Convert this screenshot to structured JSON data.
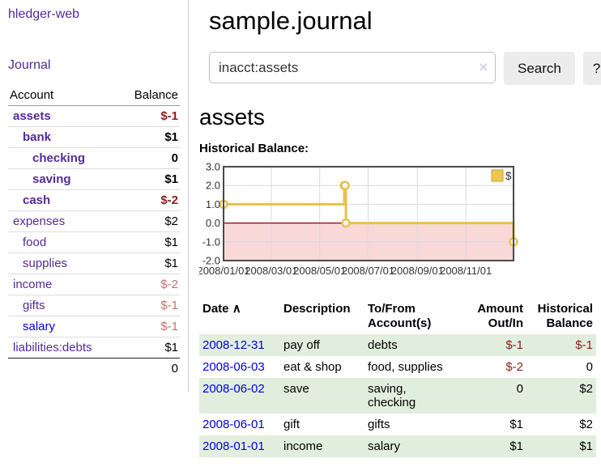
{
  "app": {
    "brand": "hledger-web"
  },
  "sidebar": {
    "journal_link": "Journal",
    "accounts": {
      "col_account": "Account",
      "col_balance": "Balance",
      "rows": [
        {
          "name": "assets",
          "balance": "$-1",
          "depth": 1,
          "bold": true,
          "neg": "strong",
          "blue": false
        },
        {
          "name": "bank",
          "balance": "$1",
          "depth": 2,
          "bold": true,
          "neg": null,
          "blue": false
        },
        {
          "name": "checking",
          "balance": "0",
          "depth": 3,
          "bold": true,
          "neg": null,
          "blue": false
        },
        {
          "name": "saving",
          "balance": "$1",
          "depth": 3,
          "bold": true,
          "neg": null,
          "blue": false
        },
        {
          "name": "cash",
          "balance": "$-2",
          "depth": 2,
          "bold": true,
          "neg": "strong",
          "blue": false
        },
        {
          "name": "expenses",
          "balance": "$2",
          "depth": 1,
          "bold": false,
          "neg": null,
          "blue": false
        },
        {
          "name": "food",
          "balance": "$1",
          "depth": 2,
          "bold": false,
          "neg": null,
          "blue": false
        },
        {
          "name": "supplies",
          "balance": "$1",
          "depth": 2,
          "bold": false,
          "neg": null,
          "blue": false
        },
        {
          "name": "income",
          "balance": "$-2",
          "depth": 1,
          "bold": false,
          "neg": "soft",
          "blue": false
        },
        {
          "name": "gifts",
          "balance": "$-1",
          "depth": 2,
          "bold": false,
          "neg": "soft",
          "blue": false
        },
        {
          "name": "salary",
          "balance": "$-1",
          "depth": 2,
          "bold": false,
          "neg": "soft",
          "blue": true
        },
        {
          "name": "liabilities:debts",
          "balance": "$1",
          "depth": 1,
          "bold": false,
          "neg": null,
          "blue": false
        }
      ],
      "total": "0"
    }
  },
  "main": {
    "title": "sample.journal",
    "search": {
      "value": "inacct:assets",
      "clear": "×",
      "search_button": "Search",
      "help_button": "?"
    },
    "heading": "assets",
    "chart_title": "Historical Balance:"
  },
  "chart_data": {
    "type": "line",
    "step": true,
    "title": "Historical Balance",
    "series": [
      {
        "name": "$",
        "color": "#e8c04e",
        "points": [
          {
            "date": "2008-01-01",
            "value": 1
          },
          {
            "date": "2008-06-01",
            "value": 2
          },
          {
            "date": "2008-06-02",
            "value": 2
          },
          {
            "date": "2008-06-03",
            "value": 0
          },
          {
            "date": "2008-12-31",
            "value": -1
          }
        ]
      }
    ],
    "point_days": [
      0,
      152,
      153,
      154,
      365
    ],
    "x_range_days": [
      0,
      365
    ],
    "tick_days": [
      0,
      60,
      121,
      182,
      244,
      305
    ],
    "x_ticks": [
      "2008/01/01",
      "2008/03/01",
      "2008/05/01",
      "2008/07/01",
      "2008/09/01",
      "2008/11/01"
    ],
    "y_ticks": [
      "3.0",
      "2.0",
      "1.0",
      "0.0",
      "-1.0",
      "-2.0"
    ],
    "ylim": [
      -2,
      3
    ],
    "grid": true,
    "legend": {
      "label": "$",
      "position": "top-right",
      "swatch_fill": "#ecc64f",
      "swatch_border": "#c9a227"
    },
    "negative_fill": "#f9d8d8",
    "zero_line_color": "#8b0000",
    "grid_color": "#d9d9d9",
    "border_color": "#4a4a4a"
  },
  "register": {
    "headers": {
      "date": "Date",
      "sort_arrow": "∧",
      "description": "Description",
      "accounts": "To/From Account(s)",
      "amount": "Amount Out/In",
      "balance": "Historical Balance"
    },
    "rows": [
      {
        "date": "2008-12-31",
        "description": "pay off",
        "accounts": "debts",
        "amount": "$-1",
        "amount_neg": true,
        "balance": "$-1",
        "balance_neg": true
      },
      {
        "date": "2008-06-03",
        "description": "eat & shop",
        "accounts": "food, supplies",
        "amount": "$-2",
        "amount_neg": true,
        "balance": "0",
        "balance_neg": false
      },
      {
        "date": "2008-06-02",
        "description": "save",
        "accounts": "saving, checking",
        "amount": "0",
        "amount_neg": false,
        "balance": "$2",
        "balance_neg": false
      },
      {
        "date": "2008-06-01",
        "description": "gift",
        "accounts": "gifts",
        "amount": "$1",
        "amount_neg": false,
        "balance": "$2",
        "balance_neg": false
      },
      {
        "date": "2008-01-01",
        "description": "income",
        "accounts": "salary",
        "amount": "$1",
        "amount_neg": false,
        "balance": "$1",
        "balance_neg": false
      }
    ]
  }
}
